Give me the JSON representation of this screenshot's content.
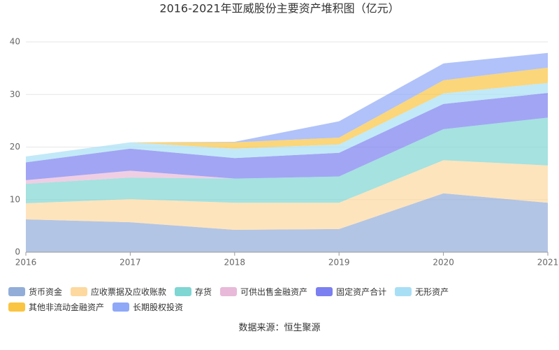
{
  "chart_data": {
    "type": "stacked-area",
    "title": "2016-2021年亚威股份主要资产堆积图（亿元）",
    "categories": [
      "2016",
      "2017",
      "2018",
      "2019",
      "2020",
      "2021"
    ],
    "ylim": [
      0,
      40
    ],
    "yticks": [
      0,
      10,
      20,
      30,
      40
    ],
    "grid": true,
    "series": [
      {
        "name": "货币资金",
        "color": "#93add9",
        "values": [
          6.25,
          5.7,
          4.25,
          4.4,
          11.2,
          9.4
        ]
      },
      {
        "name": "应收票据及应收账款",
        "color": "#fdd9a0",
        "values": [
          3.05,
          4.4,
          5.15,
          5.0,
          6.3,
          7.1
        ]
      },
      {
        "name": "存货",
        "color": "#7fd6d3",
        "values": [
          3.7,
          4.1,
          4.6,
          5.0,
          5.9,
          9.1
        ]
      },
      {
        "name": "可供出售金融资产",
        "color": "#e8b9d9",
        "values": [
          0.7,
          1.3,
          0,
          0,
          0,
          0
        ]
      },
      {
        "name": "固定资产合计",
        "color": "#7b7ff0",
        "values": [
          3.4,
          4.2,
          3.9,
          4.5,
          4.8,
          4.7
        ]
      },
      {
        "name": "无形资产",
        "color": "#a8dff5",
        "values": [
          1.1,
          1.2,
          1.8,
          1.6,
          2.0,
          1.9
        ]
      },
      {
        "name": "其他非流动金融资产",
        "color": "#f9c542",
        "values": [
          0,
          0,
          1.2,
          1.3,
          2.5,
          2.9
        ]
      },
      {
        "name": "长期股权投资",
        "color": "#8fa8f7",
        "values": [
          0,
          0,
          0.1,
          3.1,
          3.2,
          2.8
        ]
      }
    ]
  },
  "source": "数据来源：恒生聚源"
}
